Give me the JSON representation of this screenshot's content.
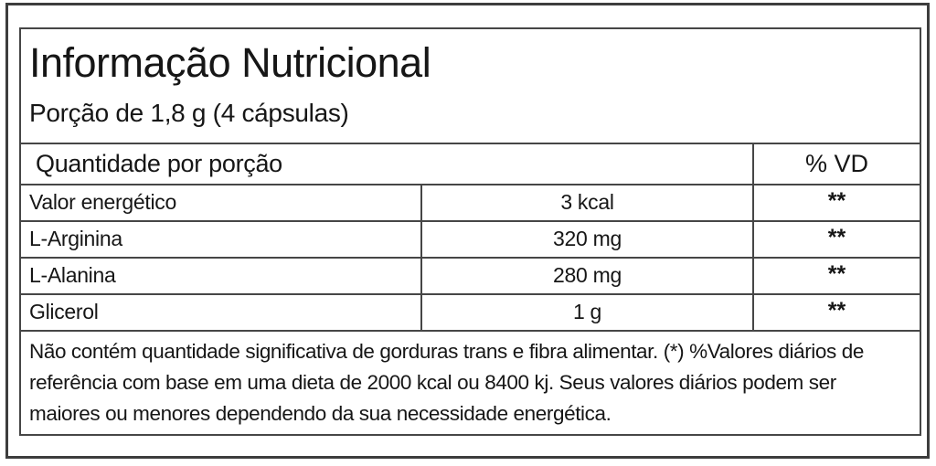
{
  "label": {
    "title": "Informação Nutricional",
    "serving": "Porção de 1,8 g (4 cápsulas)",
    "header": {
      "quantity": "Quantidade por porção",
      "dv": "% VD"
    },
    "rows": [
      {
        "name": "Valor energético",
        "amount": "3 kcal",
        "dv": "**"
      },
      {
        "name": "L-Arginina",
        "amount": "320 mg",
        "dv": "**"
      },
      {
        "name": "L-Alanina",
        "amount": "280 mg",
        "dv": "**"
      },
      {
        "name": "Glicerol",
        "amount": "1 g",
        "dv": "**"
      }
    ],
    "footnote": "Não contém quantidade significativa de gorduras trans e fibra alimentar. (*) %Valores diários de referência com base em uma dieta de 2000 kcal ou 8400 kj. Seus valores diários podem ser maiores ou menores dependendo da sua necessidade energética."
  }
}
